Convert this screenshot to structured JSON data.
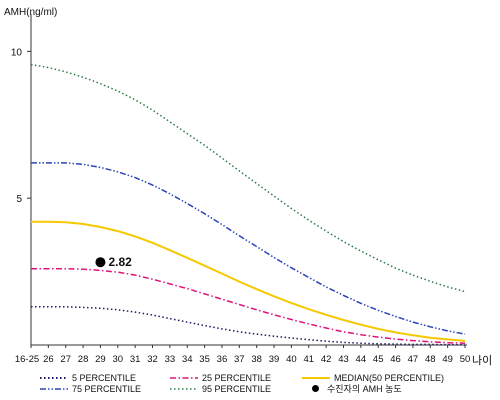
{
  "chart_data": {
    "type": "line",
    "title": "",
    "ylabel": "AMH(ng/ml)",
    "xlabel": "나이",
    "x": [
      "16-25",
      "26",
      "27",
      "28",
      "29",
      "30",
      "31",
      "32",
      "33",
      "34",
      "35",
      "36",
      "37",
      "38",
      "39",
      "40",
      "41",
      "42",
      "43",
      "44",
      "45",
      "46",
      "47",
      "48",
      "49",
      "50"
    ],
    "yticks": [
      5,
      10
    ],
    "ylim": [
      0,
      11.0
    ],
    "grid": false,
    "legend_position": "bottom",
    "series": [
      {
        "name": "5 PERCENTILE",
        "color": "#1a1a66",
        "dash": "dotted",
        "values": [
          1.3,
          1.3,
          1.3,
          1.28,
          1.25,
          1.2,
          1.12,
          1.02,
          0.9,
          0.78,
          0.66,
          0.55,
          0.45,
          0.37,
          0.3,
          0.24,
          0.18,
          0.13,
          0.09,
          0.06,
          0.04,
          0.03,
          0.02,
          0.02,
          0.01,
          0.01
        ]
      },
      {
        "name": "25 PERCENTILE",
        "color": "#e0127a",
        "dash": "dashdot",
        "values": [
          2.6,
          2.6,
          2.6,
          2.58,
          2.54,
          2.48,
          2.38,
          2.24,
          2.08,
          1.92,
          1.74,
          1.56,
          1.38,
          1.2,
          1.03,
          0.87,
          0.72,
          0.58,
          0.45,
          0.35,
          0.27,
          0.2,
          0.15,
          0.11,
          0.08,
          0.06
        ]
      },
      {
        "name": "MEDIAN(50 PERCENTILE)",
        "color": "#f5c800",
        "dash": "solid",
        "values": [
          4.2,
          4.2,
          4.18,
          4.12,
          4.02,
          3.88,
          3.7,
          3.48,
          3.23,
          2.97,
          2.7,
          2.43,
          2.16,
          1.9,
          1.66,
          1.43,
          1.22,
          1.03,
          0.85,
          0.69,
          0.55,
          0.43,
          0.33,
          0.25,
          0.19,
          0.14
        ]
      },
      {
        "name": "75 PERCENTILE",
        "color": "#2a44b8",
        "dash": "dashdotdot",
        "values": [
          6.2,
          6.2,
          6.2,
          6.15,
          6.05,
          5.9,
          5.7,
          5.45,
          5.15,
          4.82,
          4.47,
          4.1,
          3.72,
          3.35,
          2.98,
          2.63,
          2.3,
          1.98,
          1.69,
          1.42,
          1.18,
          0.97,
          0.78,
          0.62,
          0.48,
          0.37
        ]
      },
      {
        "name": "95 PERCENTILE",
        "color": "#2a7a45",
        "dash": "dotted",
        "values": [
          9.55,
          9.45,
          9.3,
          9.12,
          8.9,
          8.65,
          8.35,
          8.0,
          7.6,
          7.2,
          6.8,
          6.37,
          5.93,
          5.5,
          5.07,
          4.65,
          4.25,
          3.88,
          3.52,
          3.2,
          2.9,
          2.62,
          2.38,
          2.17,
          1.98,
          1.82
        ]
      }
    ],
    "points": [
      {
        "name": "수진자의 AMH 농도",
        "x": "29",
        "y": 2.82,
        "label": "2.82"
      }
    ]
  }
}
